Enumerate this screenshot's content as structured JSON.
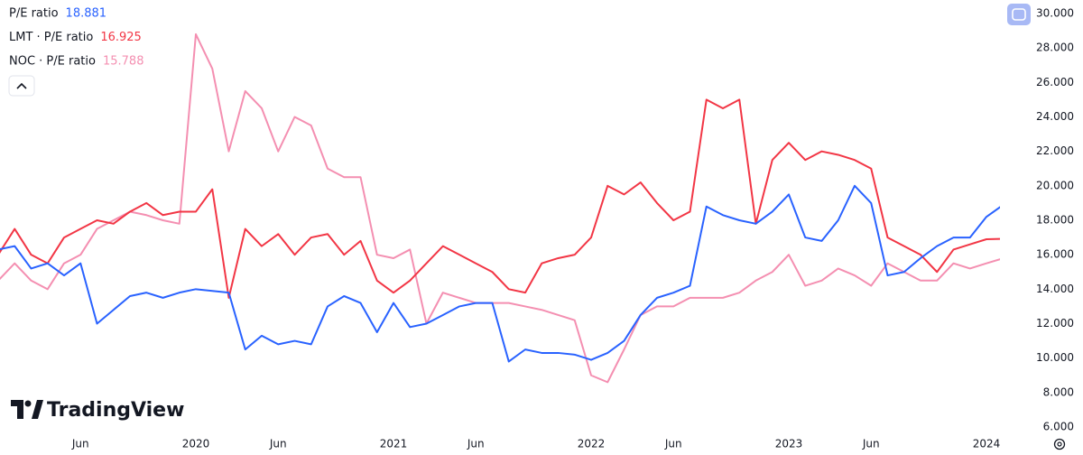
{
  "chart_data": {
    "type": "line",
    "watermark": "TradingView",
    "categories": [
      null,
      null,
      null,
      null,
      null,
      "Jun",
      null,
      null,
      null,
      null,
      null,
      null,
      "2020",
      null,
      null,
      null,
      null,
      "Jun",
      null,
      null,
      null,
      null,
      null,
      null,
      "2021",
      null,
      null,
      null,
      null,
      "Jun",
      null,
      null,
      null,
      null,
      null,
      null,
      "2022",
      null,
      null,
      null,
      null,
      "Jun",
      null,
      null,
      null,
      null,
      null,
      null,
      "2023",
      null,
      null,
      null,
      null,
      "Jun",
      null,
      null,
      null,
      null,
      null,
      null,
      "2024",
      null
    ],
    "series": [
      {
        "name": "P/E ratio",
        "color": "#2962ff",
        "values": [
          16.3,
          16.5,
          15.2,
          15.5,
          14.8,
          15.5,
          12.0,
          12.8,
          13.6,
          13.8,
          13.5,
          13.8,
          14.0,
          13.9,
          13.8,
          10.5,
          11.3,
          10.8,
          11.0,
          10.8,
          13.0,
          13.6,
          13.2,
          11.5,
          13.2,
          11.8,
          12.0,
          12.5,
          13.0,
          13.2,
          13.2,
          9.8,
          10.5,
          10.3,
          10.3,
          10.2,
          9.9,
          10.3,
          11.0,
          12.5,
          13.5,
          13.8,
          14.2,
          18.8,
          18.3,
          18.0,
          17.8,
          18.5,
          19.5,
          17.0,
          16.8,
          18.0,
          20.0,
          19.0,
          14.8,
          15.0,
          15.8,
          16.5,
          17.0,
          17.0,
          18.2,
          18.881
        ]
      },
      {
        "name": "LMT · P/E ratio",
        "color": "#f23645",
        "values": [
          16.0,
          17.5,
          16.0,
          15.5,
          17.0,
          17.5,
          18.0,
          17.8,
          18.5,
          19.0,
          18.3,
          18.5,
          18.5,
          19.8,
          13.5,
          17.5,
          16.5,
          17.2,
          16.0,
          17.0,
          17.2,
          16.0,
          16.8,
          14.5,
          13.8,
          14.5,
          15.5,
          16.5,
          16.0,
          15.5,
          15.0,
          14.0,
          13.8,
          15.5,
          15.8,
          16.0,
          17.0,
          20.0,
          19.5,
          20.2,
          19.0,
          18.0,
          18.5,
          25.0,
          24.5,
          25.0,
          17.8,
          21.5,
          22.5,
          21.5,
          22.0,
          21.8,
          21.5,
          21.0,
          17.0,
          16.5,
          16.0,
          15.0,
          16.3,
          16.6,
          16.9,
          16.925
        ]
      },
      {
        "name": "NOC · P/E ratio",
        "color": "#f48fb1",
        "values": [
          14.5,
          15.5,
          14.5,
          14.0,
          15.5,
          16.0,
          17.5,
          18.0,
          18.5,
          18.3,
          18.0,
          17.8,
          28.8,
          26.8,
          22.0,
          25.5,
          24.5,
          22.0,
          24.0,
          23.5,
          21.0,
          20.5,
          20.5,
          16.0,
          15.8,
          16.3,
          12.0,
          13.8,
          13.5,
          13.2,
          13.2,
          13.2,
          13.0,
          12.8,
          12.5,
          12.2,
          9.0,
          8.6,
          10.5,
          12.5,
          13.0,
          13.0,
          13.5,
          13.5,
          13.5,
          13.8,
          14.5,
          15.0,
          16.0,
          14.2,
          14.5,
          15.2,
          14.8,
          14.2,
          15.5,
          15.0,
          14.5,
          14.5,
          15.5,
          15.2,
          15.5,
          15.788
        ]
      }
    ],
    "ylim": [
      6,
      30
    ],
    "yticks": [
      {
        "value": 6,
        "label": "6.000"
      },
      {
        "value": 8,
        "label": "8.000"
      },
      {
        "value": 10,
        "label": "10.000"
      },
      {
        "value": 12,
        "label": "12.000"
      },
      {
        "value": 14,
        "label": "14.000"
      },
      {
        "value": 16,
        "label": "16.000"
      },
      {
        "value": 18,
        "label": "18.000"
      },
      {
        "value": 20,
        "label": "20.000"
      },
      {
        "value": 22,
        "label": "22.000"
      },
      {
        "value": 24,
        "label": "24.000"
      },
      {
        "value": 26,
        "label": "26.000"
      },
      {
        "value": 28,
        "label": "28.000"
      },
      {
        "value": 30,
        "label": "30.000"
      }
    ],
    "grid": false,
    "legend": "top-left"
  }
}
